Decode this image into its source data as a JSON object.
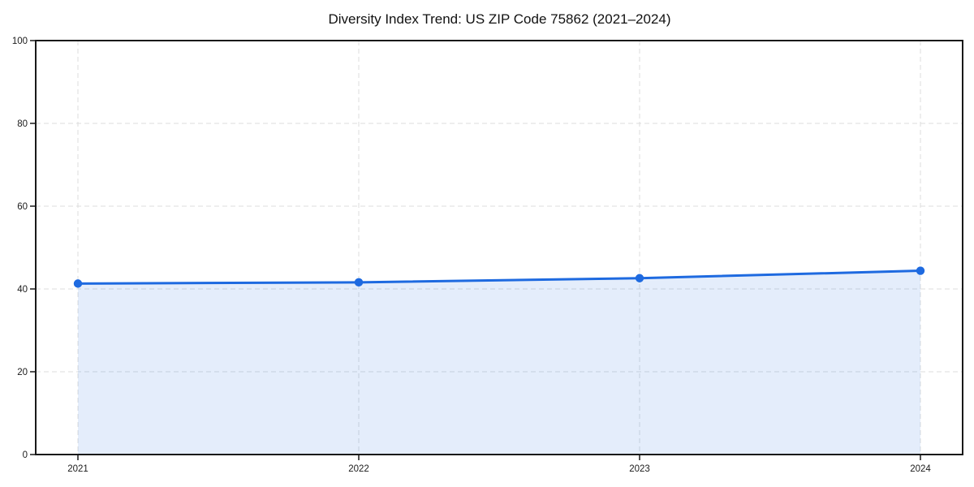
{
  "chart_data": {
    "type": "area",
    "title": "Diversity Index Trend: US ZIP Code 75862 (2021–2024)",
    "categories": [
      "2021",
      "2022",
      "2023",
      "2024"
    ],
    "values": [
      41.3,
      41.6,
      42.6,
      44.4
    ],
    "xlabel": "",
    "ylabel": "",
    "ylim": [
      0,
      100
    ],
    "yticks": [
      0,
      20,
      40,
      60,
      80,
      100
    ],
    "grid": "dashed",
    "legend": "none",
    "marker": "circle",
    "colors": {
      "line": "#1e6ae0",
      "marker": "#1e6ae0",
      "fill": "#1e6ae0",
      "fill_opacity": 0.12,
      "grid": "#dcdcdc",
      "axis": "#191919",
      "text": "#1a1a1a",
      "background": "#ffffff"
    }
  }
}
